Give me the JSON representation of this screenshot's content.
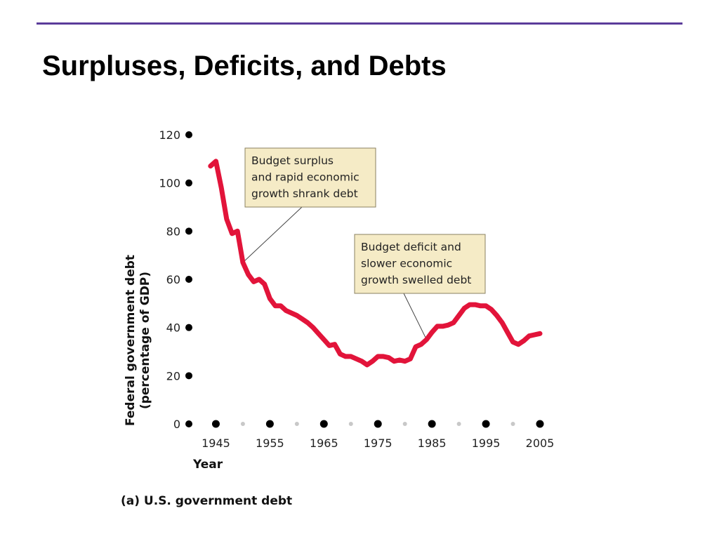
{
  "slide": {
    "title": "Surpluses, Deficits, and Debts",
    "rule_color": "#5b3c9a"
  },
  "chart_data": {
    "type": "line",
    "xlabel": "Year",
    "ylabel": [
      "Federal government debt",
      "(percentage of GDP)"
    ],
    "caption": "(a) U.S. government debt",
    "xlim": [
      1940,
      2005
    ],
    "ylim": [
      0,
      120
    ],
    "x_ticks": [
      1945,
      1955,
      1965,
      1975,
      1985,
      1995,
      2005
    ],
    "y_ticks": [
      0,
      20,
      40,
      60,
      80,
      100,
      120
    ],
    "minor_x_dots": [
      1940,
      1950,
      1960,
      1970,
      1980,
      1990,
      2000
    ],
    "line_color": "#e2143a",
    "series": [
      {
        "x": [
          1944,
          1945,
          1946,
          1947,
          1948,
          1949,
          1950,
          1951,
          1952,
          1953,
          1954,
          1955,
          1956,
          1957,
          1958,
          1959,
          1960,
          1961,
          1962,
          1963,
          1964,
          1965,
          1966,
          1967,
          1968,
          1969,
          1970,
          1971,
          1972,
          1973,
          1974,
          1975,
          1976,
          1977,
          1978,
          1979,
          1980,
          1981,
          1982,
          1983,
          1984,
          1985,
          1986,
          1987,
          1988,
          1989,
          1990,
          1991,
          1992,
          1993,
          1994,
          1995,
          1996,
          1997,
          1998,
          1999,
          2000,
          2001,
          2002,
          2003,
          2004,
          2005
        ],
        "y": [
          107,
          109,
          98,
          85,
          79,
          80,
          67,
          62,
          59,
          60,
          58,
          52,
          49,
          49,
          47,
          46,
          45,
          43.5,
          42,
          40,
          37.5,
          35,
          32.5,
          33,
          29,
          28,
          28,
          27,
          26,
          24.5,
          26,
          28,
          28,
          27.5,
          26,
          26.5,
          26,
          27,
          32,
          33,
          35,
          38,
          40.5,
          40.5,
          41,
          42,
          45,
          48,
          49.5,
          49.5,
          49,
          49,
          47.5,
          45,
          42,
          38,
          34,
          33,
          34.5,
          36.5,
          37,
          37.5
        ]
      }
    ],
    "annotations": [
      {
        "lines": [
          "Budget surplus",
          "and rapid economic",
          "growth shrank debt"
        ],
        "pointer": [
          1950,
          67
        ]
      },
      {
        "lines": [
          "Budget deficit and",
          "slower economic",
          "growth swelled debt"
        ],
        "pointer": [
          1984,
          35
        ]
      }
    ],
    "annotation_fill": "#f5ebc6",
    "annotation_stroke": "#8a8060"
  }
}
